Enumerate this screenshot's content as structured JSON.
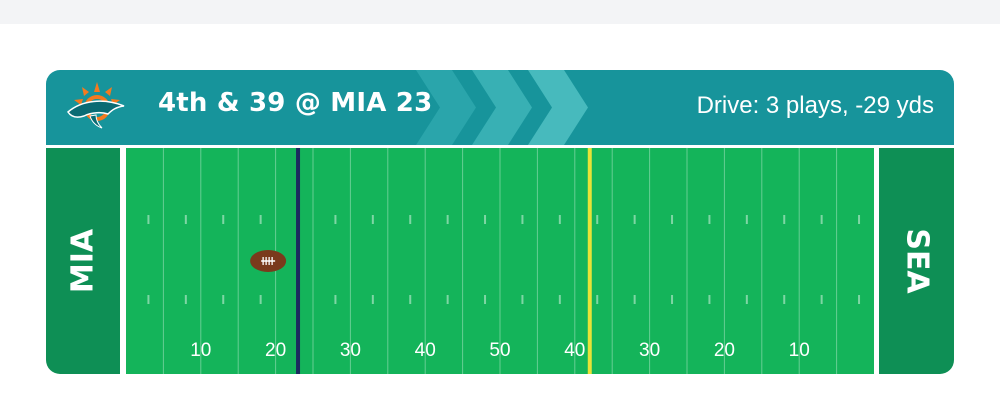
{
  "game_status": {
    "down_distance": "4th & 39 @ MIA 23",
    "drive_summary": "Drive: 3 plays, -29 yds"
  },
  "field": {
    "left_endzone": "MIA",
    "right_endzone": "SEA",
    "yard_numbers": [
      "10",
      "20",
      "30",
      "40",
      "50",
      "40",
      "30",
      "20",
      "10"
    ],
    "ball_yard_line": 19,
    "line_of_scrimmage_yard_line": 23,
    "first_down_yard_line": 62
  },
  "colors": {
    "header": "#17949b",
    "field": "#14b45a",
    "endzone": "#0e8f55",
    "line_of_scrimmage": "#1b2a5e",
    "first_down_line": "#e8e337",
    "ball": "#7a3a1c"
  },
  "icons": {
    "team_logo": "dolphins-logo",
    "football": "football-icon"
  }
}
